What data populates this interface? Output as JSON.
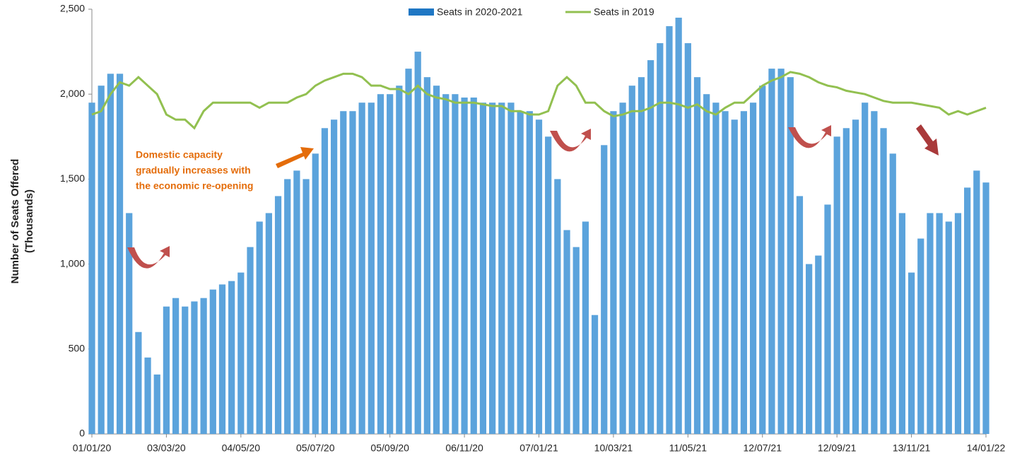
{
  "chart_data": {
    "type": "bar_line",
    "y_label": [
      "Number of Seats Offered",
      "(Thousands)"
    ],
    "annotation": [
      "Domestic capacity",
      "gradually increases with",
      "the economic re-opening"
    ],
    "categories": [
      "01/01/20",
      null,
      null,
      null,
      null,
      null,
      null,
      null,
      "03/03/20",
      null,
      null,
      null,
      null,
      null,
      null,
      null,
      "04/05/20",
      null,
      null,
      null,
      null,
      null,
      null,
      null,
      "05/07/20",
      null,
      null,
      null,
      null,
      null,
      null,
      null,
      "05/09/20",
      null,
      null,
      null,
      null,
      null,
      null,
      null,
      "06/11/20",
      null,
      null,
      null,
      null,
      null,
      null,
      null,
      "07/01/21",
      null,
      null,
      null,
      null,
      null,
      null,
      null,
      "10/03/21",
      null,
      null,
      null,
      null,
      null,
      null,
      null,
      "11/05/21",
      null,
      null,
      null,
      null,
      null,
      null,
      null,
      "12/07/21",
      null,
      null,
      null,
      null,
      null,
      null,
      null,
      "12/09/21",
      null,
      null,
      null,
      null,
      null,
      null,
      null,
      "13/11/21",
      null,
      null,
      null,
      null,
      null,
      null,
      null,
      "14/01/22"
    ],
    "series": [
      {
        "name": "Seats in 2020-2021",
        "color": "#5ba3dc",
        "kind": "bar",
        "values": [
          1950,
          2050,
          2120,
          2120,
          1300,
          600,
          450,
          350,
          750,
          800,
          750,
          780,
          800,
          850,
          880,
          900,
          950,
          1100,
          1250,
          1300,
          1400,
          1500,
          1550,
          1500,
          1650,
          1800,
          1850,
          1900,
          1900,
          1950,
          1950,
          2000,
          2000,
          2050,
          2150,
          2250,
          2100,
          2050,
          2000,
          2000,
          1980,
          1980,
          1950,
          1950,
          1950,
          1950,
          1900,
          1900,
          1850,
          1750,
          1500,
          1200,
          1100,
          1250,
          700,
          1700,
          1900,
          1950,
          2050,
          2100,
          2200,
          2300,
          2400,
          2450,
          2300,
          2100,
          2000,
          1950,
          1900,
          1850,
          1900,
          1950,
          2050,
          2150,
          2150,
          2100,
          1400,
          1000,
          1050,
          1350,
          1750,
          1800,
          1850,
          1950,
          1900,
          1800,
          1650,
          1300,
          950,
          1150,
          1300,
          1300,
          1250,
          1300,
          1450,
          1550,
          1480
        ]
      },
      {
        "name": "Seats in 2019",
        "color": "#92c050",
        "kind": "line",
        "values": [
          1880,
          1900,
          2000,
          2070,
          2050,
          2100,
          2050,
          2000,
          1880,
          1850,
          1850,
          1800,
          1900,
          1950,
          1950,
          1950,
          1950,
          1950,
          1920,
          1950,
          1950,
          1950,
          1980,
          2000,
          2050,
          2080,
          2100,
          2120,
          2120,
          2100,
          2050,
          2050,
          2030,
          2030,
          2000,
          2050,
          2000,
          1980,
          1970,
          1950,
          1950,
          1950,
          1940,
          1930,
          1930,
          1900,
          1900,
          1880,
          1880,
          1900,
          2050,
          2100,
          2050,
          1950,
          1950,
          1900,
          1870,
          1880,
          1900,
          1900,
          1920,
          1950,
          1950,
          1940,
          1920,
          1940,
          1900,
          1880,
          1920,
          1950,
          1950,
          2000,
          2050,
          2080,
          2100,
          2130,
          2120,
          2100,
          2070,
          2050,
          2040,
          2020,
          2010,
          2000,
          1980,
          1960,
          1950,
          1950,
          1950,
          1940,
          1930,
          1920,
          1880,
          1900,
          1880,
          1900,
          1920
        ]
      }
    ],
    "ylim": [
      0,
      2500
    ],
    "yticks": [
      0,
      500,
      {
        "value": 1000,
        "label": "1,000"
      },
      {
        "value": 1500,
        "label": "1,500"
      },
      {
        "value": 2000,
        "label": "2,000"
      },
      {
        "value": 2500,
        "label": "2,500"
      }
    ]
  }
}
